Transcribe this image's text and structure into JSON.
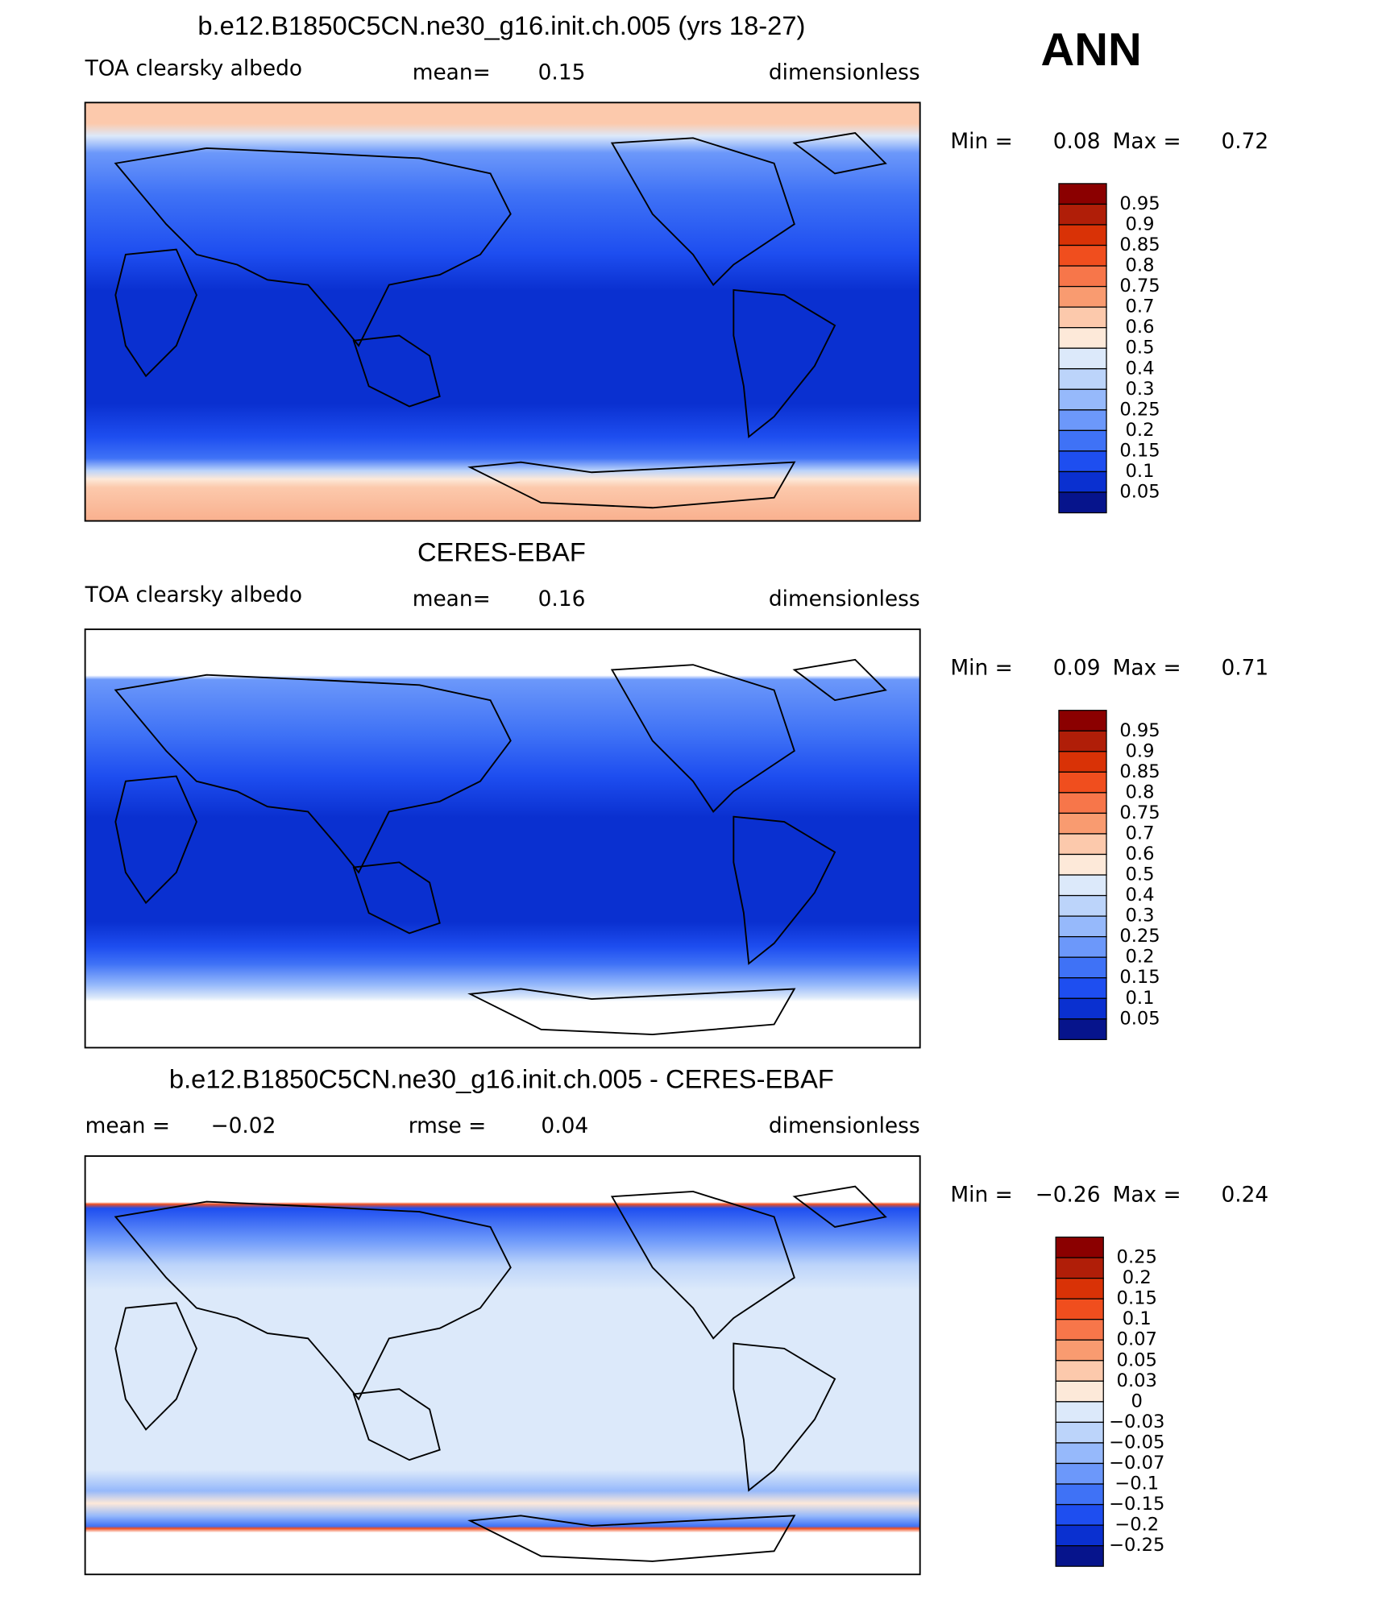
{
  "header": {
    "season": "ANN"
  },
  "colorbar_colors": [
    "#8b0000",
    "#b01e08",
    "#d93206",
    "#f04e1e",
    "#f7764a",
    "#f99b70",
    "#fcc9ac",
    "#fde9d9",
    "#dce9fa",
    "#bcd4fa",
    "#96b9fb",
    "#6c98fa",
    "#3f72f6",
    "#1e4ef0",
    "#0a30d0",
    "#06148c"
  ],
  "panels": [
    {
      "title": "b.e12.B1850C5CN.ne30_g16.init.ch.005 (yrs 18-27)",
      "field": "TOA clearsky albedo",
      "stats": [
        {
          "label": "mean=",
          "value": "0.15"
        }
      ],
      "units": "dimensionless",
      "min_label": "Min =",
      "min": "0.08",
      "max_label": "Max =",
      "max": "0.72",
      "colorbar": [
        "0.95",
        "0.9",
        "0.85",
        "0.8",
        "0.75",
        "0.7",
        "0.6",
        "0.5",
        "0.4",
        "0.3",
        "0.25",
        "0.2",
        "0.15",
        "0.1",
        "0.05"
      ]
    },
    {
      "title": "CERES-EBAF",
      "field": "TOA clearsky albedo",
      "stats": [
        {
          "label": "mean=",
          "value": "0.16"
        }
      ],
      "units": "dimensionless",
      "min_label": "Min =",
      "min": "0.09",
      "max_label": "Max =",
      "max": "0.71",
      "colorbar": [
        "0.95",
        "0.9",
        "0.85",
        "0.8",
        "0.75",
        "0.7",
        "0.6",
        "0.5",
        "0.4",
        "0.3",
        "0.25",
        "0.2",
        "0.15",
        "0.1",
        "0.05"
      ]
    },
    {
      "title": "b.e12.B1850C5CN.ne30_g16.init.ch.005 - CERES-EBAF",
      "stats": [
        {
          "label": "mean =",
          "value": "−0.02"
        },
        {
          "label": "rmse =",
          "value": "0.04"
        }
      ],
      "units": "dimensionless",
      "min_label": "Min =",
      "min": "−0.26",
      "max_label": "Max =",
      "max": "0.24",
      "colorbar": [
        "0.25",
        "0.2",
        "0.15",
        "0.1",
        "0.07",
        "0.05",
        "0.03",
        "0",
        "−0.03",
        "−0.05",
        "−0.07",
        "−0.1",
        "−0.15",
        "−0.2",
        "−0.25"
      ]
    }
  ]
}
